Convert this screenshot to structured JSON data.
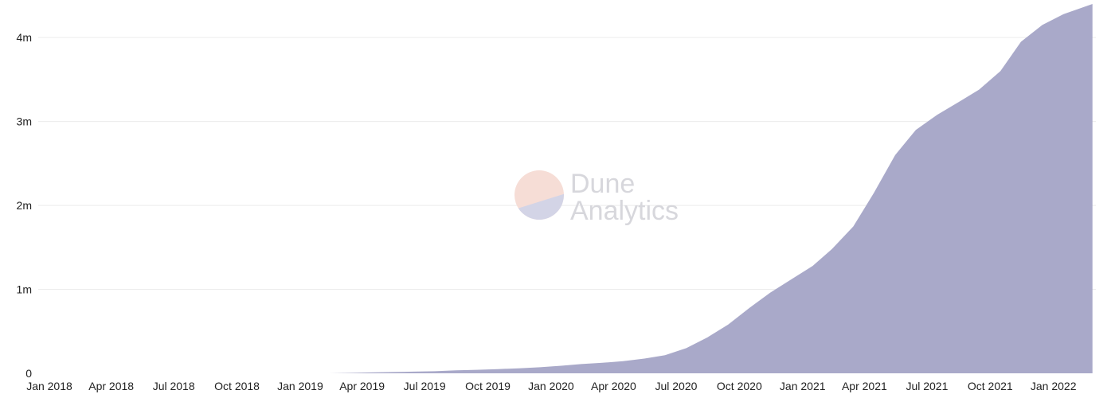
{
  "chart_data": {
    "type": "area",
    "title": "",
    "xlabel": "",
    "ylabel": "",
    "x_range": [
      "2018-01-01",
      "2022-03-20"
    ],
    "ylim": [
      0,
      4400000
    ],
    "grid": true,
    "legend": "none",
    "x_ticks": [
      {
        "date": "2018-01-01",
        "label": "Jan 2018"
      },
      {
        "date": "2018-04-01",
        "label": "Apr 2018"
      },
      {
        "date": "2018-07-01",
        "label": "Jul 2018"
      },
      {
        "date": "2018-10-01",
        "label": "Oct 2018"
      },
      {
        "date": "2019-01-01",
        "label": "Jan 2019"
      },
      {
        "date": "2019-04-01",
        "label": "Apr 2019"
      },
      {
        "date": "2019-07-01",
        "label": "Jul 2019"
      },
      {
        "date": "2019-10-01",
        "label": "Oct 2019"
      },
      {
        "date": "2020-01-01",
        "label": "Jan 2020"
      },
      {
        "date": "2020-04-01",
        "label": "Apr 2020"
      },
      {
        "date": "2020-07-01",
        "label": "Jul 2020"
      },
      {
        "date": "2020-10-01",
        "label": "Oct 2020"
      },
      {
        "date": "2021-01-01",
        "label": "Jan 2021"
      },
      {
        "date": "2021-04-01",
        "label": "Apr 2021"
      },
      {
        "date": "2021-07-01",
        "label": "Jul 2021"
      },
      {
        "date": "2021-10-01",
        "label": "Oct 2021"
      },
      {
        "date": "2022-01-01",
        "label": "Jan 2022"
      }
    ],
    "y_ticks": [
      {
        "value": 0,
        "label": "0"
      },
      {
        "value": 1000000,
        "label": "1m"
      },
      {
        "value": 2000000,
        "label": "2m"
      },
      {
        "value": 3000000,
        "label": "3m"
      },
      {
        "value": 4000000,
        "label": "4m"
      }
    ],
    "series": [
      {
        "color": "#a9a9c9",
        "points": [
          [
            "2019-03-01",
            0
          ],
          [
            "2019-04-01",
            5000
          ],
          [
            "2019-05-01",
            10000
          ],
          [
            "2019-06-01",
            15000
          ],
          [
            "2019-07-01",
            20000
          ],
          [
            "2019-08-01",
            25000
          ],
          [
            "2019-09-01",
            35000
          ],
          [
            "2019-10-01",
            42000
          ],
          [
            "2019-11-01",
            50000
          ],
          [
            "2019-12-01",
            60000
          ],
          [
            "2020-01-01",
            72000
          ],
          [
            "2020-02-01",
            90000
          ],
          [
            "2020-03-01",
            110000
          ],
          [
            "2020-04-01",
            125000
          ],
          [
            "2020-05-01",
            145000
          ],
          [
            "2020-06-01",
            175000
          ],
          [
            "2020-07-01",
            215000
          ],
          [
            "2020-08-01",
            300000
          ],
          [
            "2020-09-01",
            430000
          ],
          [
            "2020-10-01",
            580000
          ],
          [
            "2020-11-01",
            780000
          ],
          [
            "2020-12-01",
            960000
          ],
          [
            "2021-01-01",
            1120000
          ],
          [
            "2021-02-01",
            1280000
          ],
          [
            "2021-03-01",
            1480000
          ],
          [
            "2021-04-01",
            1750000
          ],
          [
            "2021-05-01",
            2150000
          ],
          [
            "2021-06-01",
            2600000
          ],
          [
            "2021-07-01",
            2900000
          ],
          [
            "2021-08-01",
            3080000
          ],
          [
            "2021-09-01",
            3230000
          ],
          [
            "2021-10-01",
            3380000
          ],
          [
            "2021-11-01",
            3600000
          ],
          [
            "2021-12-01",
            3950000
          ],
          [
            "2022-01-01",
            4150000
          ],
          [
            "2022-02-01",
            4280000
          ],
          [
            "2022-03-15",
            4400000
          ]
        ]
      }
    ]
  },
  "watermark": {
    "line1": "Dune",
    "line2": "Analytics",
    "colors": {
      "top": "#f6ddd6",
      "bottom": "#d3d4e6",
      "text": "#d7d7dc"
    }
  },
  "colors": {
    "grid": "#ececec",
    "axis_text": "#222222",
    "area": "#a9a9c9"
  }
}
